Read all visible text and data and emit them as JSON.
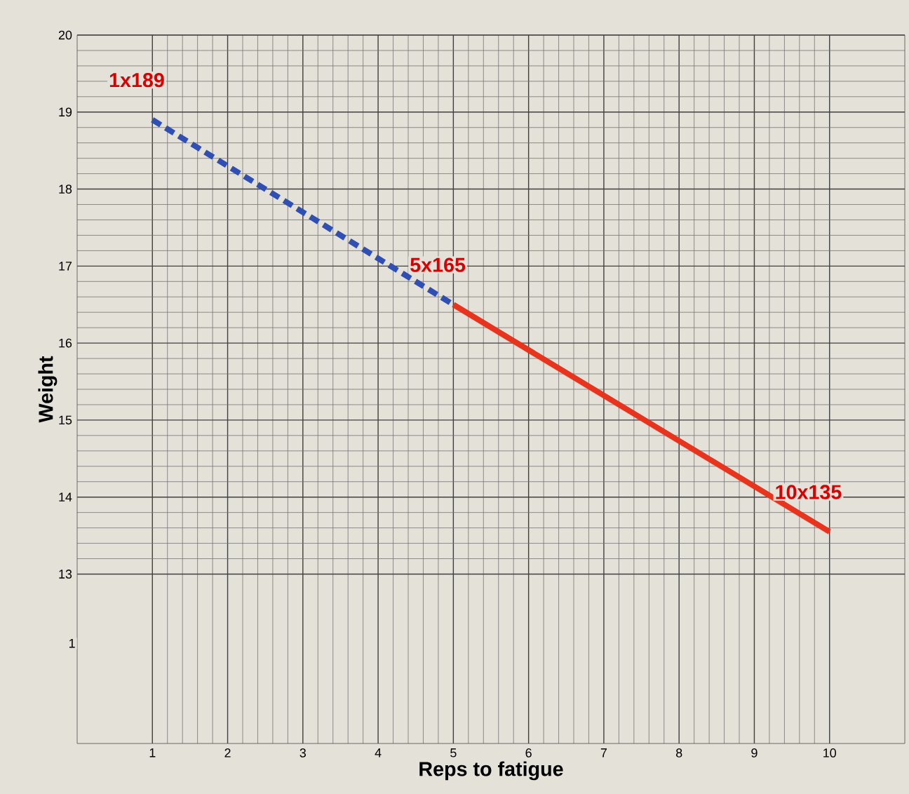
{
  "chart_data": {
    "type": "line",
    "xlabel": "Reps to fatigue",
    "ylabel": "Weight",
    "xlim": [
      0,
      11
    ],
    "ylim": [
      10.8,
      20
    ],
    "xticks": [
      1,
      2,
      3,
      4,
      5,
      6,
      7,
      8,
      9,
      10
    ],
    "yticks": [
      13,
      14,
      15,
      16,
      17,
      18,
      19,
      20
    ],
    "grid": true,
    "series": [
      {
        "color": "#2f4fb4",
        "line_style": "dashed",
        "x": [
          1,
          5
        ],
        "values": [
          18.9,
          16.5
        ]
      },
      {
        "color": "#e8341c",
        "line_style": "solid",
        "x": [
          5,
          10
        ],
        "values": [
          16.5,
          13.55
        ]
      }
    ],
    "annotations": [
      {
        "text": "1x189",
        "x": 1,
        "y": 18.9
      },
      {
        "text": "5x165",
        "x": 5,
        "y": 16.5
      },
      {
        "text": "10x135",
        "x": 10,
        "y": 13.55
      },
      "1"
    ]
  }
}
